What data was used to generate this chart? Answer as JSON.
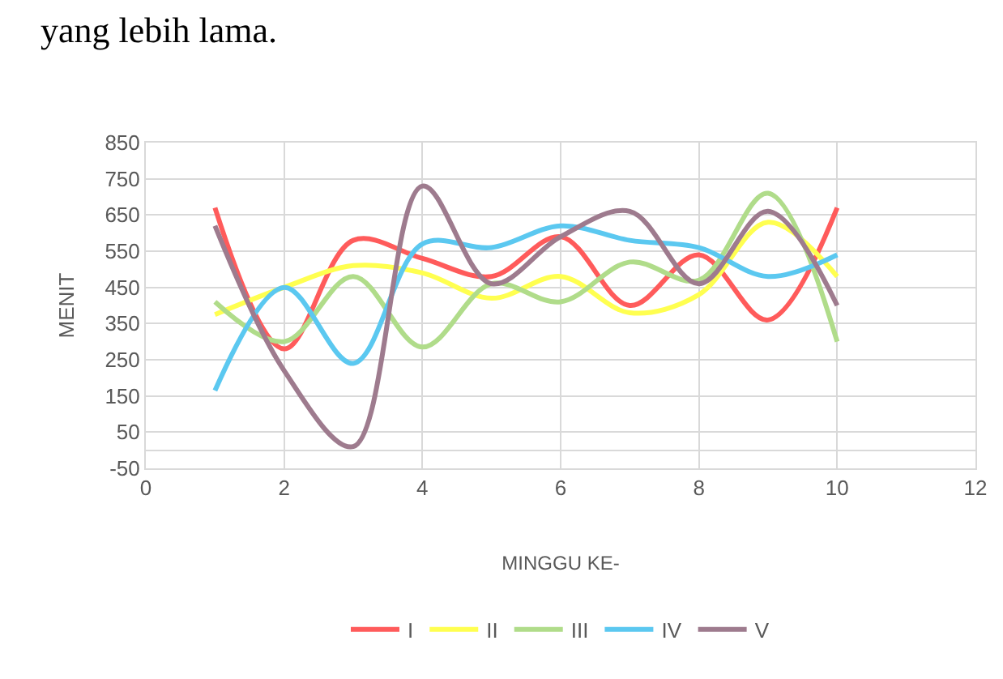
{
  "chart_data": {
    "type": "line",
    "xlabel": "MINGGU KE-",
    "ylabel": "MENIT",
    "annotations": [
      "yang lebih lama."
    ],
    "x": [
      1,
      2,
      3,
      4,
      5,
      6,
      7,
      8,
      9,
      10
    ],
    "series": [
      {
        "name": "I",
        "color": "#ff5b5b",
        "values": [
          670,
          280,
          580,
          530,
          480,
          590,
          400,
          540,
          360,
          670
        ]
      },
      {
        "name": "II",
        "color": "#ffff50",
        "values": [
          375,
          450,
          510,
          490,
          420,
          480,
          380,
          430,
          630,
          480
        ]
      },
      {
        "name": "III",
        "color": "#b0dc8a",
        "values": [
          410,
          300,
          480,
          285,
          460,
          410,
          520,
          470,
          710,
          300
        ]
      },
      {
        "name": "IV",
        "color": "#5bc8f0",
        "values": [
          165,
          450,
          240,
          570,
          560,
          620,
          580,
          560,
          480,
          540
        ]
      },
      {
        "name": "V",
        "color": "#9e7b8e",
        "values": [
          620,
          220,
          10,
          730,
          460,
          590,
          660,
          460,
          660,
          400
        ]
      }
    ],
    "xlim": [
      0,
      12
    ],
    "xticks": [
      0,
      2,
      4,
      6,
      8,
      10,
      12
    ],
    "ylim": [
      -50,
      850
    ],
    "yticks": [
      -50,
      50,
      150,
      250,
      350,
      450,
      550,
      650,
      750,
      850
    ],
    "grid": true,
    "legend": "bottom",
    "marker": "none",
    "line_style": "solid"
  }
}
